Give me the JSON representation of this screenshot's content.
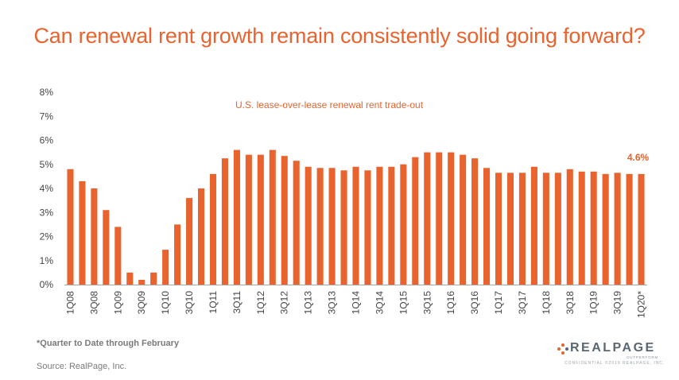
{
  "title": "Can renewal rent growth remain consistently solid going forward?",
  "footnote": "*Quarter to Date through February",
  "source": "Source: RealPage, Inc.",
  "logo": {
    "word": "REALPAGE",
    "tagline": "OUTPERFORM",
    "confidential": "CONFIDENTIAL ©2019 REALPAGE, INC."
  },
  "colors": {
    "accent": "#e8632e",
    "bar": "#e8632e",
    "axis": "#a6a6a6",
    "text": "#444444"
  },
  "chart_data": {
    "type": "bar",
    "subtitle": "U.S. lease-over-lease renewal rent trade-out",
    "categories": [
      "1Q08",
      "2Q08",
      "3Q08",
      "4Q08",
      "1Q09",
      "2Q09",
      "3Q09",
      "4Q09",
      "1Q10",
      "2Q10",
      "3Q10",
      "4Q10",
      "1Q11",
      "2Q11",
      "3Q11",
      "4Q11",
      "1Q12",
      "2Q12",
      "3Q12",
      "4Q12",
      "1Q13",
      "2Q13",
      "3Q13",
      "4Q13",
      "1Q14",
      "2Q14",
      "3Q14",
      "4Q14",
      "1Q15",
      "2Q15",
      "3Q15",
      "4Q15",
      "1Q16",
      "2Q16",
      "3Q16",
      "4Q16",
      "1Q17",
      "2Q17",
      "3Q17",
      "4Q17",
      "1Q18",
      "2Q18",
      "3Q18",
      "4Q18",
      "1Q19",
      "2Q19",
      "3Q19",
      "4Q19",
      "1Q20*"
    ],
    "tick_labels": [
      "1Q08",
      "3Q08",
      "1Q09",
      "3Q09",
      "1Q10",
      "3Q10",
      "1Q11",
      "3Q11",
      "1Q12",
      "3Q12",
      "1Q13",
      "3Q13",
      "1Q14",
      "3Q14",
      "1Q15",
      "3Q15",
      "1Q16",
      "3Q16",
      "1Q17",
      "3Q17",
      "1Q18",
      "3Q18",
      "1Q19",
      "3Q19",
      "1Q20*"
    ],
    "values": [
      4.8,
      4.3,
      4.0,
      3.1,
      2.4,
      0.5,
      0.2,
      0.5,
      1.45,
      2.5,
      3.6,
      4.0,
      4.6,
      5.25,
      5.6,
      5.4,
      5.4,
      5.6,
      5.35,
      5.15,
      4.9,
      4.85,
      4.85,
      4.75,
      4.9,
      4.75,
      4.9,
      4.9,
      5.0,
      5.3,
      5.5,
      5.5,
      5.5,
      5.4,
      5.25,
      4.85,
      4.65,
      4.65,
      4.65,
      4.9,
      4.65,
      4.65,
      4.8,
      4.7,
      4.7,
      4.6,
      4.65,
      4.6,
      4.6
    ],
    "y_ticks": [
      "0%",
      "1%",
      "2%",
      "3%",
      "4%",
      "5%",
      "6%",
      "7%",
      "8%"
    ],
    "ylim": [
      0,
      8
    ],
    "grid": false,
    "last_label": "4.6%"
  }
}
